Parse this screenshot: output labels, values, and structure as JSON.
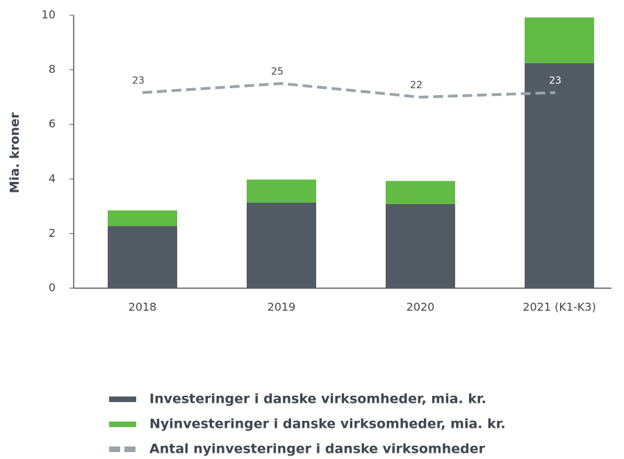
{
  "chart_data": {
    "type": "bar",
    "stacked": true,
    "ylabel": "Mia. kroner",
    "categories": [
      "2018",
      "2019",
      "2020",
      "2021 (K1-K3)"
    ],
    "series": [
      {
        "name": "Investeringer i danske virksomheder, mia. kr.",
        "type": "bar",
        "color": "#525a63",
        "values": [
          2.28,
          3.13,
          3.08,
          8.25
        ]
      },
      {
        "name": "Nyinvesteringer i danske virksomheder, mia. kr.",
        "type": "bar",
        "color": "#62bb46",
        "values": [
          0.57,
          0.85,
          0.85,
          1.67
        ]
      },
      {
        "name": "Antal nyinvesteringer i danske virksomheder",
        "type": "line",
        "axis": "y2",
        "color": "#9aa3a8",
        "dashed": true,
        "values": [
          23,
          25,
          22,
          23
        ]
      }
    ],
    "ylim": [
      0,
      10
    ],
    "yticks": [
      0,
      2,
      4,
      6,
      8,
      10
    ],
    "y2lim": [
      -20,
      40
    ],
    "grid": false,
    "legend": "bottom"
  }
}
